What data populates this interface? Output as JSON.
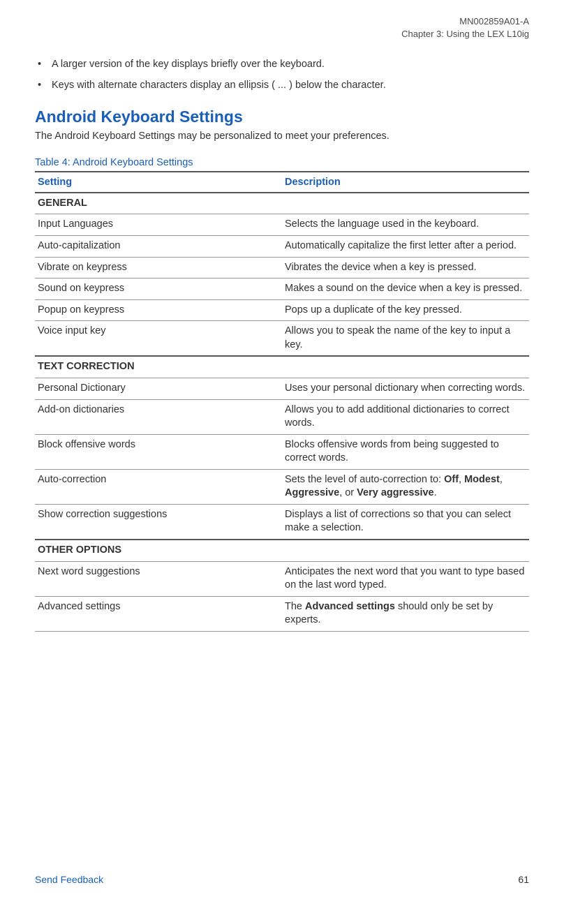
{
  "header": {
    "doc_id": "MN002859A01-A",
    "chapter": "Chapter 3:  Using the LEX L10ig"
  },
  "bullets": [
    "A larger version of the key displays briefly over the keyboard.",
    "Keys with alternate characters display an ellipsis ( ... ) below the character."
  ],
  "section": {
    "heading": "Android Keyboard Settings",
    "intro": "The Android Keyboard Settings may be personalized to meet your preferences."
  },
  "table": {
    "caption": "Table 4: Android Keyboard Settings",
    "columns": [
      "Setting",
      "Description"
    ],
    "rows": [
      {
        "type": "section",
        "label": "GENERAL"
      },
      {
        "type": "row",
        "setting": "Input Languages",
        "description": "Selects the language used in the keyboard."
      },
      {
        "type": "row",
        "setting": "Auto-capitalization",
        "description": "Automatically capitalize the first letter after a period."
      },
      {
        "type": "row",
        "setting": "Vibrate on keypress",
        "description": "Vibrates the device when a key is pressed."
      },
      {
        "type": "row",
        "setting": "Sound on keypress",
        "description": "Makes a sound on the device when a key is pressed."
      },
      {
        "type": "row",
        "setting": "Popup on keypress",
        "description": "Pops up a duplicate of the key pressed."
      },
      {
        "type": "row",
        "setting": "Voice input key",
        "description": "Allows you to speak the name of the key to input a key."
      },
      {
        "type": "section",
        "label": "TEXT CORRECTION"
      },
      {
        "type": "row",
        "setting": "Personal Dictionary",
        "description": "Uses your personal dictionary when correcting words."
      },
      {
        "type": "row",
        "setting": "Add-on dictionaries",
        "description": "Allows you to add additional dictionaries to correct words."
      },
      {
        "type": "row",
        "setting": "Block offensive words",
        "description": "Blocks offensive words from being suggested to correct words."
      },
      {
        "type": "row",
        "setting": "Auto-correction",
        "description_html": "Sets the level of auto-correction to: <b>Off</b>, <b>Modest</b>, <b>Aggressive</b>, or <b>Very aggressive</b>."
      },
      {
        "type": "row",
        "setting": "Show correction suggestions",
        "description": "Displays a list of corrections so that you can select make a selection."
      },
      {
        "type": "section",
        "label": "OTHER OPTIONS"
      },
      {
        "type": "row",
        "setting": "Next word suggestions",
        "description": "Anticipates the next word that you want to type based on the last word typed."
      },
      {
        "type": "row",
        "setting": "Advanced settings",
        "description_html": "The <b>Advanced settings</b> should only be set by experts."
      }
    ]
  },
  "footer": {
    "link": "Send Feedback",
    "page": "61"
  }
}
